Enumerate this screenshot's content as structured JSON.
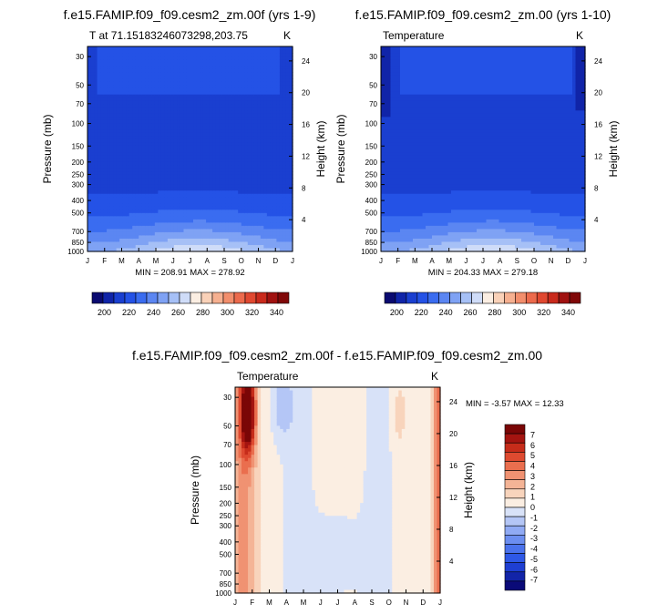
{
  "colors": {
    "frame": "#000000",
    "seq_scale": [
      "#0a0a70",
      "#1024a8",
      "#1a3fd0",
      "#2452e6",
      "#3a6cf0",
      "#5b86f2",
      "#7fa2f4",
      "#a6c0f6",
      "#cfdcf8",
      "#fbeee2",
      "#f9d1b8",
      "#f6b090",
      "#f28e6c",
      "#ec6a4c",
      "#e04830",
      "#c92a1c",
      "#a01210",
      "#800808"
    ],
    "diff_scale": [
      "#0a0a78",
      "#1224a8",
      "#1e3fd2",
      "#2e58e6",
      "#4a72ec",
      "#6c8ef0",
      "#90aaf4",
      "#b4c6f6",
      "#d8e2f8",
      "#fbeee2",
      "#f8d4bc",
      "#f4b496",
      "#f09272",
      "#ea6e4e",
      "#de4a30",
      "#c62c1a",
      "#a41410",
      "#7a0606"
    ]
  },
  "chart_data": [
    {
      "type": "heatmap",
      "title": "f.e15.FAMIP.f09_f09.cesm2_zm.00f (yrs 1-9)",
      "subtitle_left": "T at 71.15183246073298,203.75",
      "units": "K",
      "xlabel": "",
      "ylabel": "Pressure (mb)",
      "ylabel_right": "Height (km)",
      "x_ticks": [
        "J",
        "F",
        "M",
        "A",
        "M",
        "J",
        "J",
        "A",
        "S",
        "O",
        "N",
        "D",
        "J"
      ],
      "y_ticks": [
        "30",
        "50",
        "70",
        "100",
        "150",
        "200",
        "250",
        "300",
        "400",
        "500",
        "700",
        "850",
        "1000"
      ],
      "y_values": [
        30,
        50,
        70,
        100,
        150,
        200,
        250,
        300,
        400,
        500,
        700,
        850,
        1000
      ],
      "ylim": [
        25,
        1000
      ],
      "right_ticks": [
        "24",
        "20",
        "16",
        "12",
        "8",
        "4"
      ],
      "right_values": [
        24,
        20,
        16,
        12,
        8,
        4
      ],
      "min_max_text": "MIN = 208.91   MAX = 278.92",
      "model": "f0"
    },
    {
      "type": "heatmap",
      "title": "f.e15.FAMIP.f09_f09.cesm2_zm.00 (yrs 1-10)",
      "subtitle_left": "Temperature",
      "units": "K",
      "xlabel": "",
      "ylabel": "Pressure (mb)",
      "ylabel_right": "Height (km)",
      "x_ticks": [
        "J",
        "F",
        "M",
        "A",
        "M",
        "J",
        "J",
        "A",
        "S",
        "O",
        "N",
        "D",
        "J"
      ],
      "y_ticks": [
        "30",
        "50",
        "70",
        "100",
        "150",
        "200",
        "250",
        "300",
        "400",
        "500",
        "700",
        "850",
        "1000"
      ],
      "y_values": [
        30,
        50,
        70,
        100,
        150,
        200,
        250,
        300,
        400,
        500,
        700,
        850,
        1000
      ],
      "ylim": [
        25,
        1000
      ],
      "right_ticks": [
        "24",
        "20",
        "16",
        "12",
        "8",
        "4"
      ],
      "right_values": [
        24,
        20,
        16,
        12,
        8,
        4
      ],
      "min_max_text": "MIN = 204.33   MAX = 279.18",
      "model": "f1"
    },
    {
      "type": "heatmap",
      "title": "f.e15.FAMIP.f09_f09.cesm2_zm.00f - f.e15.FAMIP.f09_f09.cesm2_zm.00",
      "subtitle_left": "Temperature",
      "units": "K",
      "xlabel": "",
      "ylabel": "Pressure (mb)",
      "ylabel_right": "Height (km)",
      "x_ticks": [
        "J",
        "F",
        "M",
        "A",
        "M",
        "J",
        "J",
        "A",
        "S",
        "O",
        "N",
        "D",
        "J"
      ],
      "y_ticks": [
        "30",
        "50",
        "70",
        "100",
        "150",
        "200",
        "250",
        "300",
        "400",
        "500",
        "700",
        "850",
        "1000"
      ],
      "y_values": [
        30,
        50,
        70,
        100,
        150,
        200,
        250,
        300,
        400,
        500,
        700,
        850,
        1000
      ],
      "ylim": [
        25,
        1000
      ],
      "right_ticks": [
        "24",
        "20",
        "16",
        "12",
        "8",
        "4"
      ],
      "right_values": [
        24,
        20,
        16,
        12,
        8,
        4
      ],
      "min_max_text": "MIN = -3.57   MAX =  12.33",
      "model": "diff"
    },
    {
      "type": "colorbar",
      "orientation": "horizontal",
      "labels": [
        "200",
        "220",
        "240",
        "260",
        "280",
        "300",
        "320",
        "340"
      ],
      "label_values": [
        200,
        220,
        240,
        260,
        280,
        300,
        320,
        340
      ],
      "range": [
        190,
        350
      ],
      "color_scale": "seq_scale"
    },
    {
      "type": "colorbar",
      "orientation": "horizontal",
      "labels": [
        "200",
        "220",
        "240",
        "260",
        "280",
        "300",
        "320",
        "340"
      ],
      "label_values": [
        200,
        220,
        240,
        260,
        280,
        300,
        320,
        340
      ],
      "range": [
        190,
        350
      ],
      "color_scale": "seq_scale"
    },
    {
      "type": "colorbar",
      "orientation": "vertical",
      "labels": [
        "7",
        "6",
        "5",
        "4",
        "3",
        "2",
        "1",
        "0",
        "-1",
        "-2",
        "-3",
        "-4",
        "-5",
        "-6",
        "-7"
      ],
      "label_values": [
        7,
        6,
        5,
        4,
        3,
        2,
        1,
        0,
        -1,
        -2,
        -3,
        -4,
        -5,
        -6,
        -7
      ],
      "range": [
        -8,
        8
      ],
      "color_scale": "diff_scale"
    }
  ]
}
